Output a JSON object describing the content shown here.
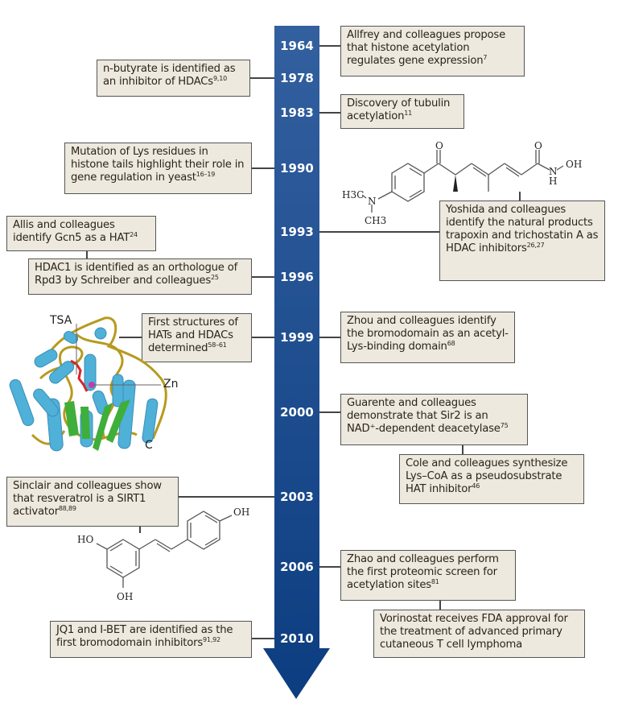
{
  "colors": {
    "arrow_top": "#33609f",
    "arrow_bottom": "#0c3d80",
    "box_fill": "#ede9df",
    "box_border": "#555555"
  },
  "years": [
    "1964",
    "1978",
    "1983",
    "1990",
    "1993",
    "1996",
    "1999",
    "2000",
    "2003",
    "2006",
    "2010"
  ],
  "events": [
    {
      "text": "Allfrey and colleagues propose that histone acetylation regulates gene expression",
      "ref": "7"
    },
    {
      "text": "n-butyrate is identified as an inhibitor of HDACs",
      "ref": "9,10"
    },
    {
      "text": "Discovery of tubulin acetylation",
      "ref": "11"
    },
    {
      "text": "Mutation of Lys residues in histone tails highlight their role in gene regulation in yeast",
      "ref": "16–19"
    },
    {
      "text": "Allis and colleagues identify Gcn5 as a HAT",
      "ref": "24"
    },
    {
      "text": "HDAC1 is identified as an orthologue of Rpd3 by Schreiber and colleagues",
      "ref": "25"
    },
    {
      "text": "Yoshida and colleagues identify the natural products trapoxin and trichostatin A as HDAC inhibitors",
      "ref": "26,27"
    },
    {
      "text": "First structures of HATs and HDACs determined",
      "ref": "58–61"
    },
    {
      "text": "Zhou and colleagues identify the bromodomain as an acetyl-Lys-binding domain",
      "ref": "68"
    },
    {
      "text": "Guarente and colleagues demonstrate that Sir2 is an NAD⁺-dependent deacetylase",
      "ref": "75"
    },
    {
      "text": "Cole and colleagues synthesize Lys–CoA as a pseudosubstrate HAT inhibitor",
      "ref": "46"
    },
    {
      "text": "Sinclair and colleagues show that resveratrol is a SIRT1 activator",
      "ref": "88,89"
    },
    {
      "text": "Zhao and colleagues perform the first proteomic screen for acetylation sites",
      "ref": "81"
    },
    {
      "text": "Vorinostat receives FDA approval for the treatment of advanced primary cutaneous T cell lymphoma",
      "ref": ""
    },
    {
      "text": "JQ1 and I-BET are identified as the first bromodomain inhibitors",
      "ref": "91,92"
    }
  ],
  "protein_labels": {
    "tsa": "TSA",
    "zn": "Zn",
    "c": "C"
  },
  "tsa_structure_labels": {
    "o1": "O",
    "o2": "O",
    "oh": "OH",
    "n_amide": "N",
    "h_amide": "H",
    "n_amine": "N",
    "h3c": "H3C",
    "ch3": "CH3"
  },
  "resveratrol_labels": {
    "ho": "HO",
    "oh_bottom": "OH",
    "oh_right": "OH"
  }
}
